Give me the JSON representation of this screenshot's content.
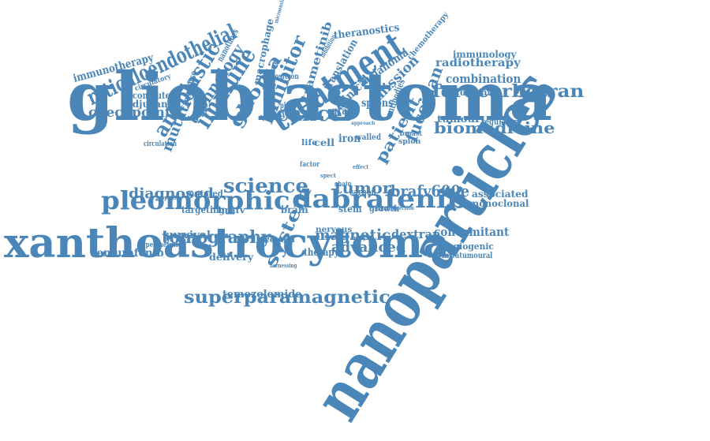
{
  "color": "#4a86b8",
  "words": [
    "nanoparticles",
    "glioblastoma",
    "xanthoastrocytoma",
    "treatment",
    "pleomorphic",
    "dabrafenib",
    "reticuloendothelial",
    "ferucarbotran",
    "biomedicine",
    "superparamagnetic",
    "immune",
    "cancer",
    "science",
    "tomography",
    "anaplastic",
    "system",
    "technology",
    "immunotherapy",
    "checkpoint",
    "inhibitor",
    "fucoidan",
    "patient",
    "diagnosed",
    "tumor",
    "brafv600e",
    "magnetic",
    "advanced",
    "vemurafenib",
    "temozolomide",
    "mutation",
    "glioma",
    "emission",
    "trametinib",
    "combination",
    "recurrent",
    "radiotherapy",
    "immunology",
    "theranostics",
    "clinical",
    "melanoma",
    "translation",
    "macrophage",
    "chemotherapy",
    "concomitant",
    "dextran",
    "tumour",
    "regulatory",
    "associated",
    "monoclonal",
    "angiogenic",
    "intratumoural",
    "survival",
    "delivery",
    "computed",
    "adjuvant",
    "response",
    "nanotubes",
    "spions",
    "grade",
    "iron",
    "cell",
    "targeting",
    "brafv",
    "mutated",
    "stem",
    "growth",
    "carbon",
    "brain",
    "therapy",
    "nervous",
    "central",
    "hyperthermia",
    "circulation",
    "properties",
    "positron",
    "photon",
    "single",
    "antibodies",
    "inhibition",
    "spion",
    "breast",
    "walled",
    "life",
    "circulatory",
    "microenvironment",
    "imaging",
    "injection",
    "analysis",
    "harnessing",
    "approach",
    "effect",
    "chain",
    "factor",
    "spect",
    "indicated"
  ]
}
